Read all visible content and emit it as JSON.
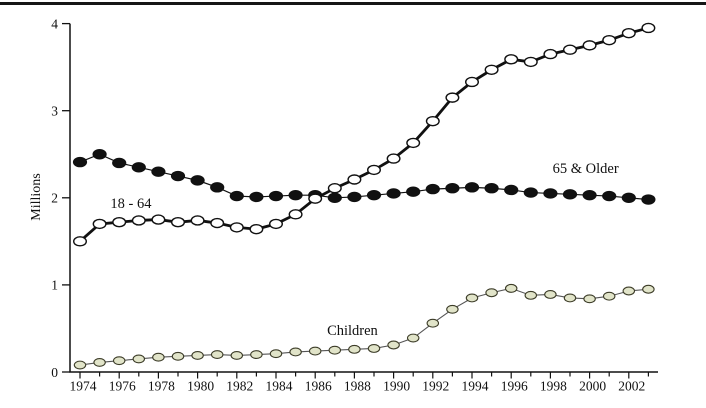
{
  "page": {
    "background": "#ffffff",
    "top_border_color": "#151515"
  },
  "chart_data": {
    "type": "line",
    "title": "",
    "xlabel": "",
    "ylabel": "Millions",
    "ylim": [
      0,
      4
    ],
    "y_ticks": [
      0,
      1,
      2,
      3,
      4
    ],
    "grid": false,
    "legend_position": "inline-annotations",
    "x": [
      1974,
      1975,
      1976,
      1977,
      1978,
      1979,
      1980,
      1981,
      1982,
      1983,
      1984,
      1985,
      1986,
      1987,
      1988,
      1989,
      1990,
      1991,
      1992,
      1993,
      1994,
      1995,
      1996,
      1997,
      1998,
      1999,
      2000,
      2001,
      2002,
      2003
    ],
    "x_tick_labels": [
      "1974",
      "1976",
      "1978",
      "1980",
      "1982",
      "1984",
      "1986",
      "1988",
      "1990",
      "1992",
      "1994",
      "1996",
      "1998",
      "2000",
      "2002"
    ],
    "x_minor_ticks_every_year": true,
    "series": [
      {
        "name": "Children",
        "marker": "gray-circle",
        "marker_fill": "#e1e4c9",
        "marker_stroke": "#3c3c28",
        "line_color": "#555555",
        "line_width": 1.1,
        "values": [
          0.08,
          0.11,
          0.13,
          0.15,
          0.17,
          0.18,
          0.19,
          0.2,
          0.19,
          0.2,
          0.21,
          0.23,
          0.24,
          0.25,
          0.26,
          0.27,
          0.31,
          0.39,
          0.56,
          0.72,
          0.85,
          0.91,
          0.96,
          0.88,
          0.89,
          0.85,
          0.84,
          0.87,
          0.93,
          0.95
        ]
      },
      {
        "name": "65 & Older",
        "marker": "filled-circle",
        "marker_fill": "#111111",
        "marker_stroke": "#111111",
        "line_color": "#111111",
        "line_width": 1.2,
        "values": [
          2.41,
          2.5,
          2.4,
          2.35,
          2.3,
          2.25,
          2.2,
          2.12,
          2.02,
          2.01,
          2.02,
          2.03,
          2.03,
          2.0,
          2.01,
          2.03,
          2.05,
          2.07,
          2.1,
          2.11,
          2.12,
          2.11,
          2.09,
          2.06,
          2.05,
          2.04,
          2.03,
          2.02,
          2.0,
          1.98
        ]
      },
      {
        "name": "18 - 64",
        "marker": "open-circle",
        "marker_fill": "#ffffff",
        "marker_stroke": "#111111",
        "line_color": "#111111",
        "line_width": 2.8,
        "values": [
          1.5,
          1.7,
          1.72,
          1.74,
          1.75,
          1.72,
          1.74,
          1.71,
          1.66,
          1.64,
          1.7,
          1.81,
          1.99,
          2.11,
          2.21,
          2.32,
          2.45,
          2.63,
          2.88,
          3.15,
          3.33,
          3.47,
          3.59,
          3.56,
          3.65,
          3.7,
          3.75,
          3.81,
          3.89,
          3.95
        ]
      }
    ],
    "annotations": [
      {
        "text": "18 - 64",
        "x": 1976.6,
        "y": 1.94
      },
      {
        "text": "65 & Older",
        "x": 1999.8,
        "y": 2.34
      },
      {
        "text": "Children",
        "x": 1987.9,
        "y": 0.48
      }
    ]
  }
}
